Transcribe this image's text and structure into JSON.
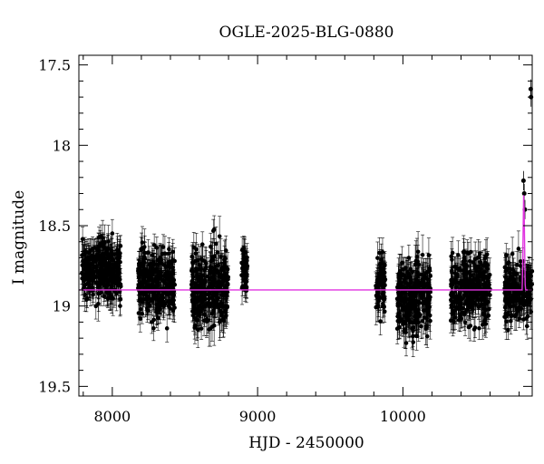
{
  "chart_data": {
    "type": "scatter",
    "title": "OGLE-2025-BLG-0880",
    "xlabel": "HJD - 2450000",
    "ylabel": "I magnitude",
    "xlim": [
      7770,
      10890
    ],
    "ylim": [
      19.56,
      17.44
    ],
    "y_inverted": true,
    "grid": false,
    "legend": "none",
    "x_ticks": [
      8000,
      9000,
      10000
    ],
    "x_tick_labels": [
      "8000",
      "9000",
      "10000"
    ],
    "y_ticks": [
      17.5,
      18,
      18.5,
      19,
      19.5
    ],
    "y_tick_labels": [
      "17.5",
      "18",
      "18.5",
      "19",
      "19.5"
    ],
    "colors": {
      "points": "#000000",
      "model": "#e033e0"
    },
    "seasons": [
      {
        "x_range": [
          7790,
          8060
        ],
        "median_mag": 18.78,
        "scatter_mag": 0.16,
        "typical_error": 0.08
      },
      {
        "x_range": [
          8175,
          8430
        ],
        "median_mag": 18.85,
        "scatter_mag": 0.17,
        "typical_error": 0.08
      },
      {
        "x_range": [
          8545,
          8800
        ],
        "median_mag": 18.9,
        "scatter_mag": 0.2,
        "typical_error": 0.09
      },
      {
        "x_range": [
          8890,
          8930
        ],
        "median_mag": 18.78,
        "scatter_mag": 0.12,
        "typical_error": 0.08
      },
      {
        "x_range": [
          9810,
          9880
        ],
        "median_mag": 18.85,
        "scatter_mag": 0.15,
        "typical_error": 0.08
      },
      {
        "x_range": [
          9960,
          10190
        ],
        "median_mag": 18.95,
        "scatter_mag": 0.2,
        "typical_error": 0.09
      },
      {
        "x_range": [
          10330,
          10600
        ],
        "median_mag": 18.9,
        "scatter_mag": 0.18,
        "typical_error": 0.08
      },
      {
        "x_range": [
          10700,
          10890
        ],
        "median_mag": 18.9,
        "scatter_mag": 0.15,
        "typical_error": 0.08
      }
    ],
    "highlighted_points": [
      {
        "x": 10830,
        "y": 18.22
      },
      {
        "x": 10835,
        "y": 18.3
      },
      {
        "x": 10840,
        "y": 18.4
      },
      {
        "x": 10880,
        "y": 17.65
      },
      {
        "x": 10882,
        "y": 17.7
      }
    ],
    "model": {
      "baseline_mag": 18.9,
      "event": {
        "t0": 10832,
        "peak_mag": 18.25,
        "half_width_days": 10
      }
    }
  }
}
